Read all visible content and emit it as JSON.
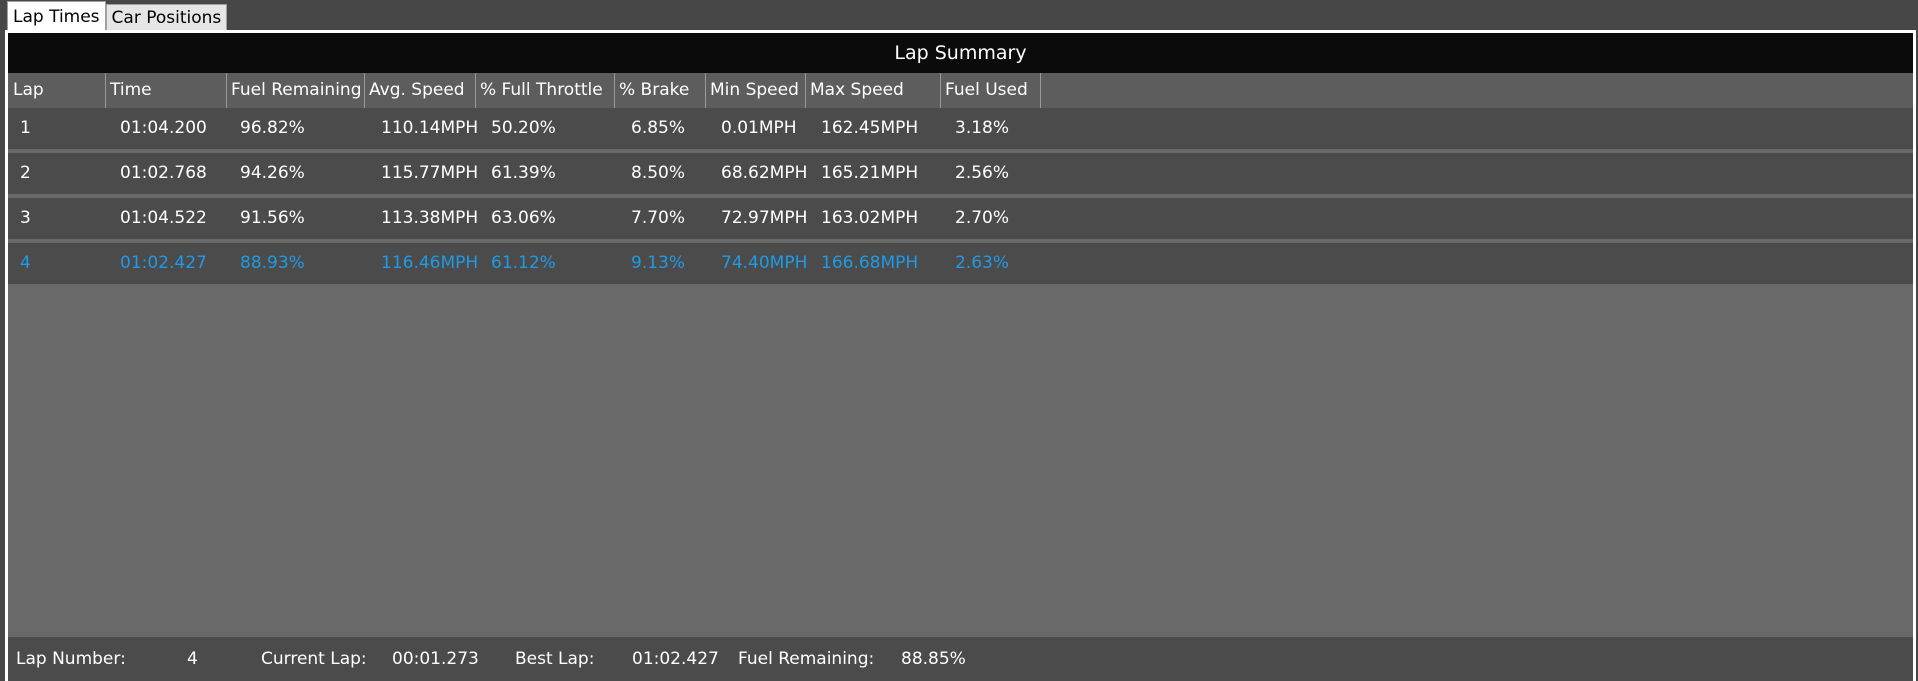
{
  "colors": {
    "accent": "#1e9be6",
    "summary_header_bg": "#0b0b0b",
    "row_bg": "#4b4b4b",
    "grid_bg": "#696969"
  },
  "tabs": [
    {
      "label": "Lap Times",
      "active": true
    },
    {
      "label": "Car Positions",
      "active": false
    }
  ],
  "summary": {
    "title": "Lap Summary"
  },
  "table": {
    "columns": [
      "Lap",
      "Time",
      "Fuel Remaining",
      "Avg. Speed",
      "% Full Throttle",
      "% Brake",
      "Min Speed",
      "Max Speed",
      "Fuel Used"
    ],
    "rows": [
      [
        "1",
        "01:04.200",
        "96.82%",
        "110.14MPH",
        "50.20%",
        "6.85%",
        "0.01MPH",
        "162.45MPH",
        "3.18%"
      ],
      [
        "2",
        "01:02.768",
        "94.26%",
        "115.77MPH",
        "61.39%",
        "8.50%",
        "68.62MPH",
        "165.21MPH",
        "2.56%"
      ],
      [
        "3",
        "01:04.522",
        "91.56%",
        "113.38MPH",
        "63.06%",
        "7.70%",
        "72.97MPH",
        "163.02MPH",
        "2.70%"
      ],
      [
        "4",
        "01:02.427",
        "88.93%",
        "116.46MPH",
        "61.12%",
        "9.13%",
        "74.40MPH",
        "166.68MPH",
        "2.63%"
      ]
    ],
    "selected_row": 3
  },
  "footer": {
    "lap_number_label": "Lap Number:",
    "lap_number_value": "4",
    "current_lap_label": "Current Lap:",
    "current_lap_value": "00:01.273",
    "best_lap_label": "Best Lap:",
    "best_lap_value": "01:02.427",
    "fuel_remaining_label": "Fuel Remaining:",
    "fuel_remaining_value": "88.85%"
  }
}
